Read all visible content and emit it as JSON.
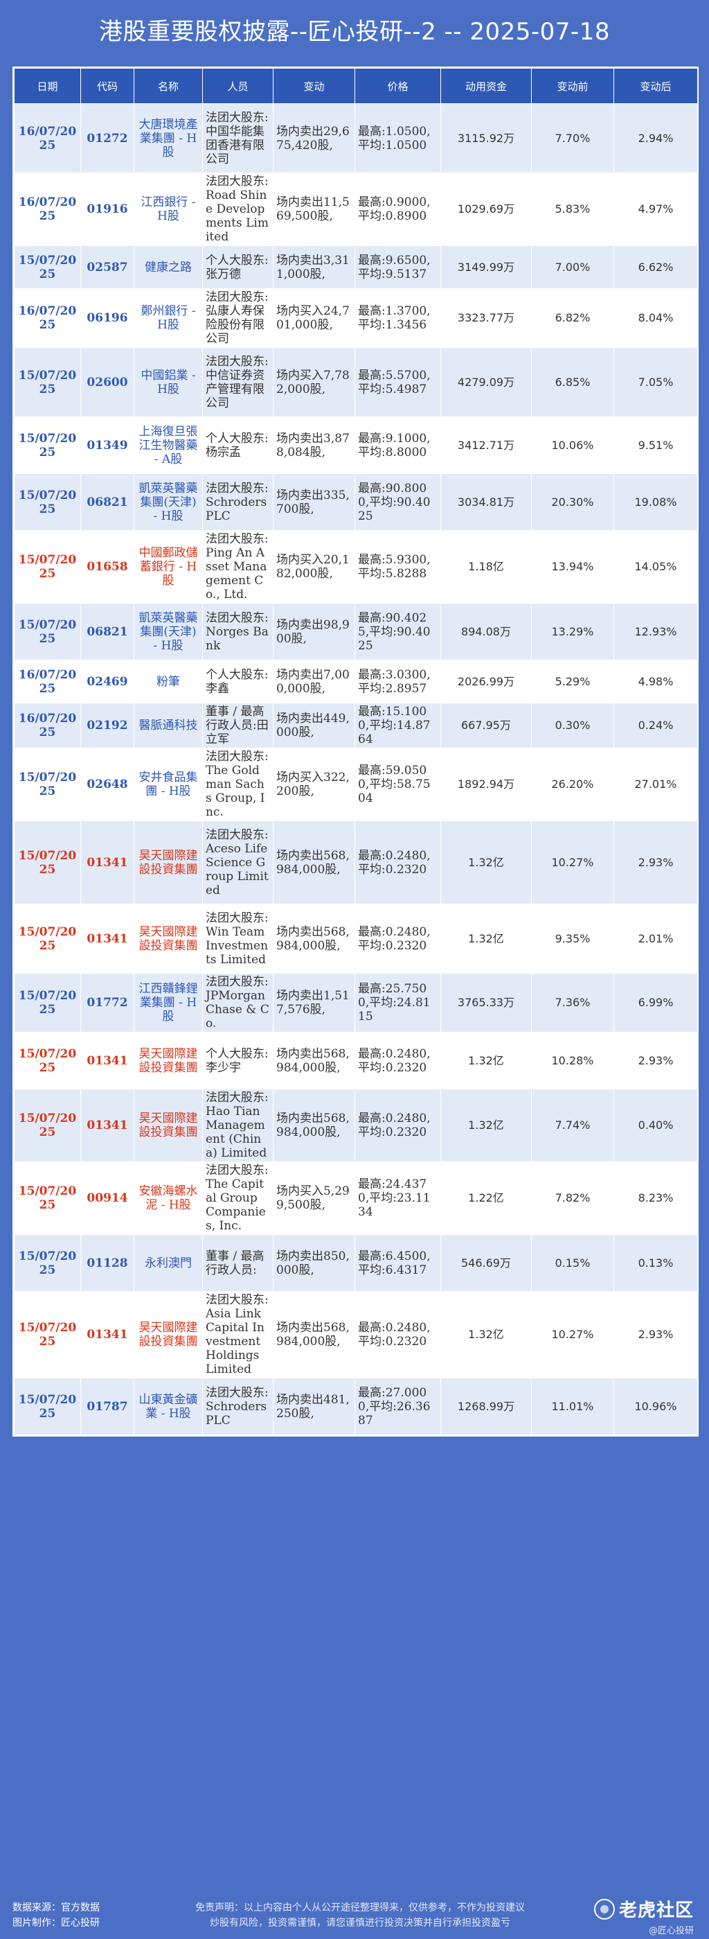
{
  "title": "港股重要股权披露--匠心投研--2 -- 2025-07-18",
  "headers": [
    "日期",
    "代码",
    "名称",
    "人员",
    "变动",
    "价格",
    "动用资金",
    "变动前",
    "变动后"
  ],
  "rows": [
    {
      "date": "16/07/2025",
      "code": "01272",
      "name": "大唐環境產業集團 - H股",
      "person": "法团大股东:中国华能集团香港有限公司",
      "change": "场内卖出29,675,420股,",
      "price": "最高:1.0500,平均:1.0500",
      "funds": "3115.92万",
      "before": "7.70%",
      "after": "2.94%",
      "color": "blue",
      "h": 100
    },
    {
      "date": "16/07/2025",
      "code": "01916",
      "name": "江西銀行 - H股",
      "person": "法团大股东:Road Shine Developments Limited",
      "change": "场内卖出11,569,500股,",
      "price": "最高:0.9000,平均:0.8900",
      "funds": "1029.69万",
      "before": "5.83%",
      "after": "4.97%",
      "color": "blue",
      "h": 100
    },
    {
      "date": "15/07/2025",
      "code": "02587",
      "name": "健康之路",
      "person": "个人大股东:张万德",
      "change": "场内卖出3,311,000股,",
      "price": "最高:9.6500,平均:9.5137",
      "funds": "3149.99万",
      "before": "7.00%",
      "after": "6.62%",
      "color": "blue",
      "h": 62
    },
    {
      "date": "16/07/2025",
      "code": "06196",
      "name": "鄭州銀行 - H股",
      "person": "法团大股东:弘康人寿保险股份有限公司",
      "change": "场内买入24,701,000股,",
      "price": "最高:1.3700,平均:1.3456",
      "funds": "3323.77万",
      "before": "6.82%",
      "after": "8.04%",
      "color": "blue",
      "h": 82
    },
    {
      "date": "15/07/2025",
      "code": "02600",
      "name": "中國鋁業 - H股",
      "person": "法团大股东:中信证券资产管理有限公司",
      "change": "场内买入7,782,000股,",
      "price": "最高:5.5700,平均:5.4987",
      "funds": "4279.09万",
      "before": "6.85%",
      "after": "7.05%",
      "color": "blue",
      "h": 100
    },
    {
      "date": "15/07/2025",
      "code": "01349",
      "name": "上海復旦張江生物醫藥 - A股",
      "person": "个人大股东:杨宗孟",
      "change": "场内卖出3,878,084股,",
      "price": "最高:9.1000,平均:8.8000",
      "funds": "3412.71万",
      "before": "10.06%",
      "after": "9.51%",
      "color": "blue",
      "h": 82
    },
    {
      "date": "15/07/2025",
      "code": "06821",
      "name": "凱萊英醫藥集團(天津) - H股",
      "person": "法团大股东:Schroders PLC",
      "change": "场内卖出335,700股,",
      "price": "最高:90.8000,平均:90.4025",
      "funds": "3034.81万",
      "before": "20.30%",
      "after": "19.08%",
      "color": "blue",
      "h": 82
    },
    {
      "date": "15/07/2025",
      "code": "01658",
      "name": "中國郵政儲蓄銀行 - H股",
      "person": "法团大股东:Ping An Asset Management Co., Ltd.",
      "change": "场内买入20,182,000股,",
      "price": "最高:5.9300,平均:5.8288",
      "funds": "1.18亿",
      "before": "13.94%",
      "after": "14.05%",
      "color": "red",
      "h": 100
    },
    {
      "date": "15/07/2025",
      "code": "06821",
      "name": "凱萊英醫藥集團(天津) - H股",
      "person": "法团大股东:Norges Bank",
      "change": "场内卖出98,900股,",
      "price": "最高:90.4025,平均:90.4025",
      "funds": "894.08万",
      "before": "13.29%",
      "after": "12.93%",
      "color": "blue",
      "h": 82
    },
    {
      "date": "16/07/2025",
      "code": "02469",
      "name": "粉筆",
      "person": "个人大股东:李鑫",
      "change": "场内卖出7,000,000股,",
      "price": "最高:3.0300,平均:2.8957",
      "funds": "2026.99万",
      "before": "5.29%",
      "after": "4.98%",
      "color": "blue",
      "h": 62
    },
    {
      "date": "16/07/2025",
      "code": "02192",
      "name": "醫脈通科技",
      "person": "董事 / 最高行政人员:田立军",
      "change": "场内卖出449,000股,",
      "price": "最高:15.1000,平均:14.8764",
      "funds": "667.95万",
      "before": "0.30%",
      "after": "0.24%",
      "color": "blue",
      "h": 62
    },
    {
      "date": "15/07/2025",
      "code": "02648",
      "name": "安井食品集團 - H股",
      "person": "法团大股东:The Goldman Sachs Group, Inc.",
      "change": "场内买入322,200股,",
      "price": "最高:59.0500,平均:58.7504",
      "funds": "1892.94万",
      "before": "26.20%",
      "after": "27.01%",
      "color": "blue",
      "h": 100
    },
    {
      "date": "15/07/2025",
      "code": "01341",
      "name": "昊天國際建設投資集團",
      "person": "法团大股东:Aceso Life Science Group Limited",
      "change": "场内卖出568,984,000股,",
      "price": "最高:0.2480,平均:0.2320",
      "funds": "1.32亿",
      "before": "10.27%",
      "after": "2.93%",
      "color": "red",
      "h": 120
    },
    {
      "date": "15/07/2025",
      "code": "01341",
      "name": "昊天國際建設投資集團",
      "person": "法团大股东:Win Team Investments Limited",
      "change": "场内卖出568,984,000股,",
      "price": "最高:0.2480,平均:0.2320",
      "funds": "1.32亿",
      "before": "9.35%",
      "after": "2.01%",
      "color": "red",
      "h": 100
    },
    {
      "date": "15/07/2025",
      "code": "01772",
      "name": "江西贛鋒鋰業集團 - H股",
      "person": "法团大股东:JPMorgan Chase & Co.",
      "change": "场内卖出1,517,576股,",
      "price": "最高:25.7500,平均:24.8115",
      "funds": "3765.33万",
      "before": "7.36%",
      "after": "6.99%",
      "color": "blue",
      "h": 82
    },
    {
      "date": "15/07/2025",
      "code": "01341",
      "name": "昊天國際建設投資集團",
      "person": "个人大股东:李少宇",
      "change": "场内卖出568,984,000股,",
      "price": "最高:0.2480,平均:0.2320",
      "funds": "1.32亿",
      "before": "10.28%",
      "after": "2.93%",
      "color": "red",
      "h": 82
    },
    {
      "date": "15/07/2025",
      "code": "01341",
      "name": "昊天國際建設投資集團",
      "person": "法团大股东:Hao Tian Management (China) Limited",
      "change": "场内卖出568,984,000股,",
      "price": "最高:0.2480,平均:0.2320",
      "funds": "1.32亿",
      "before": "7.74%",
      "after": "0.40%",
      "color": "red",
      "h": 100
    },
    {
      "date": "15/07/2025",
      "code": "00914",
      "name": "安徽海螺水泥 - H股",
      "person": "法团大股东:The Capital Group Companies, Inc.",
      "change": "场内买入5,299,500股,",
      "price": "最高:24.4370,平均:23.1134",
      "funds": "1.22亿",
      "before": "7.82%",
      "after": "8.23%",
      "color": "red",
      "h": 100
    },
    {
      "date": "15/07/2025",
      "code": "01128",
      "name": "永利澳門",
      "person": "董事 / 最高行政人员:",
      "change": "场内卖出850,000股,",
      "price": "最高:6.4500,平均:6.4317",
      "funds": "546.69万",
      "before": "0.15%",
      "after": "0.13%",
      "color": "blue",
      "h": 82
    },
    {
      "date": "15/07/2025",
      "code": "01341",
      "name": "昊天國際建設投資集團",
      "person": "法团大股东:Asia Link Capital Investment Holdings Limited",
      "change": "场内卖出568,984,000股,",
      "price": "最高:0.2480,平均:0.2320",
      "funds": "1.32亿",
      "before": "10.27%",
      "after": "2.93%",
      "color": "red",
      "h": 120
    },
    {
      "date": "15/07/2025",
      "code": "01787",
      "name": "山東黃金礦業 - H股",
      "person": "法团大股东:Schroders PLC",
      "change": "场内卖出481,250股,",
      "price": "最高:27.0000,平均:26.3687",
      "funds": "1268.99万",
      "before": "11.01%",
      "after": "10.96%",
      "color": "blue",
      "h": 82
    }
  ],
  "footer": {
    "source": "数据来源：官方数据",
    "maker": "图片制作：匠心投研",
    "disclaimer1": "免责声明：以上内容由个人从公开途径整理得来，仅供参考，不作为投资建议",
    "disclaimer2": "炒股有风险，投资需谨慎，请您谨慎进行投资决策并自行承担投资盈亏",
    "brand": "老虎社区",
    "brand_sub": "@匠心投研"
  }
}
